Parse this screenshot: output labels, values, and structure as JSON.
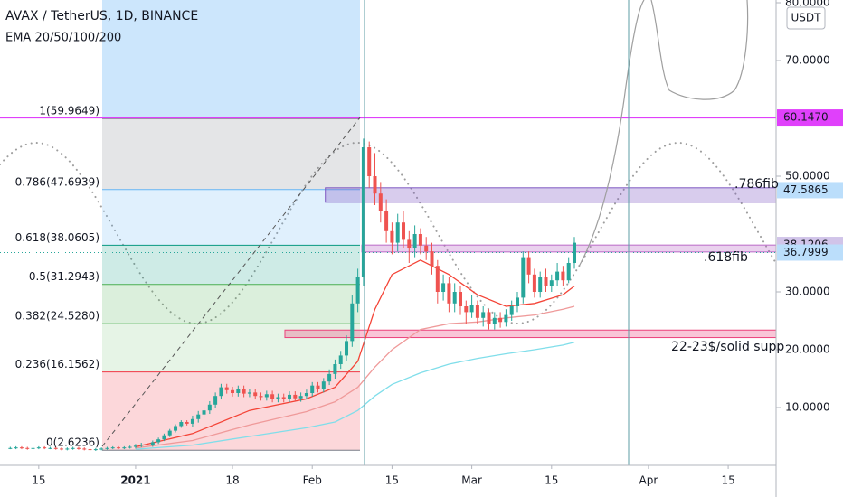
{
  "header": {
    "symbol": "AVAX / TetherUS, 1D, BINANCE",
    "indicator": "EMA 20/50/100/200"
  },
  "chart_data": {
    "type": "candlestick",
    "x": [
      -22,
      -21,
      -20,
      -19,
      -18,
      -17,
      -16,
      -15,
      -14,
      -13,
      -12,
      -11,
      -10,
      -9,
      -8,
      -7,
      -6,
      -5,
      -4,
      -3,
      -2,
      -1,
      0,
      1,
      2,
      3,
      4,
      5,
      6,
      7,
      8,
      9,
      10,
      11,
      12,
      13,
      14,
      15,
      16,
      17,
      18,
      19,
      20,
      21,
      22,
      23,
      24,
      25,
      26,
      27,
      28,
      29,
      30,
      31,
      32,
      33,
      34,
      35,
      36,
      37,
      38,
      39,
      40,
      41,
      42,
      43,
      44,
      45,
      46,
      47,
      48,
      49,
      50,
      51,
      52,
      53,
      54,
      55,
      56,
      57,
      58,
      59,
      60,
      61,
      62,
      63,
      64,
      65,
      66,
      67,
      68,
      69,
      70,
      71,
      72,
      73,
      74,
      75,
      76,
      77
    ],
    "ohlc": [
      [
        3.0,
        3.2,
        2.8,
        3.0
      ],
      [
        3.0,
        3.3,
        2.8,
        3.1
      ],
      [
        3.1,
        3.3,
        2.8,
        3.0
      ],
      [
        3.0,
        3.2,
        2.7,
        2.9
      ],
      [
        2.9,
        3.2,
        2.7,
        3.0
      ],
      [
        3.0,
        3.3,
        2.8,
        3.1
      ],
      [
        3.1,
        3.3,
        2.8,
        3.0
      ],
      [
        3.0,
        3.2,
        2.8,
        3.0
      ],
      [
        3.0,
        3.2,
        2.7,
        2.9
      ],
      [
        2.9,
        3.1,
        2.6,
        2.8
      ],
      [
        2.8,
        3.1,
        2.6,
        2.9
      ],
      [
        2.9,
        3.2,
        2.7,
        3.0
      ],
      [
        3.0,
        3.2,
        2.7,
        2.9
      ],
      [
        2.9,
        3.1,
        2.6,
        2.8
      ],
      [
        2.8,
        3.0,
        2.5,
        2.7
      ],
      [
        2.7,
        3.0,
        2.5,
        2.8
      ],
      [
        2.8,
        3.1,
        2.6,
        2.9
      ],
      [
        2.9,
        3.2,
        2.7,
        3.0
      ],
      [
        3.0,
        3.3,
        2.8,
        3.1
      ],
      [
        3.1,
        3.3,
        2.8,
        3.0
      ],
      [
        3.0,
        3.3,
        2.8,
        3.1
      ],
      [
        3.1,
        3.4,
        2.9,
        3.2
      ],
      [
        3.2,
        3.7,
        2.9,
        3.4
      ],
      [
        3.4,
        3.9,
        3.1,
        3.6
      ],
      [
        3.6,
        3.9,
        3.2,
        3.5
      ],
      [
        3.5,
        4.3,
        3.2,
        4.0
      ],
      [
        4.0,
        4.8,
        3.7,
        4.5
      ],
      [
        4.5,
        5.5,
        4.2,
        5.2
      ],
      [
        5.2,
        6.3,
        4.9,
        6.0
      ],
      [
        6.0,
        7.1,
        5.7,
        6.8
      ],
      [
        6.8,
        7.8,
        6.5,
        7.5
      ],
      [
        7.5,
        7.8,
        6.9,
        7.2
      ],
      [
        7.2,
        8.6,
        6.6,
        8.0
      ],
      [
        8.0,
        9.4,
        7.4,
        8.8
      ],
      [
        8.8,
        10.1,
        8.2,
        9.5
      ],
      [
        9.5,
        11.1,
        8.9,
        10.5
      ],
      [
        10.5,
        12.6,
        9.9,
        12.0
      ],
      [
        12.0,
        14.1,
        11.4,
        13.5
      ],
      [
        13.5,
        14.1,
        12.4,
        13.0
      ],
      [
        13.0,
        13.6,
        11.9,
        12.5
      ],
      [
        12.5,
        13.8,
        11.9,
        13.2
      ],
      [
        13.2,
        13.8,
        11.8,
        12.4
      ],
      [
        12.4,
        13.2,
        11.8,
        12.6
      ],
      [
        12.6,
        13.2,
        11.4,
        12.0
      ],
      [
        12.0,
        12.6,
        11.2,
        11.8
      ],
      [
        11.8,
        12.9,
        11.2,
        12.3
      ],
      [
        12.3,
        12.9,
        10.9,
        11.5
      ],
      [
        11.5,
        12.4,
        10.9,
        11.8
      ],
      [
        11.8,
        12.4,
        10.9,
        11.5
      ],
      [
        11.5,
        12.8,
        10.9,
        12.2
      ],
      [
        12.2,
        12.8,
        11.0,
        11.6
      ],
      [
        11.6,
        12.6,
        11.0,
        12.0
      ],
      [
        12.0,
        13.1,
        11.4,
        12.5
      ],
      [
        12.5,
        14.4,
        11.9,
        13.8
      ],
      [
        13.8,
        14.4,
        12.6,
        13.2
      ],
      [
        13.2,
        15.1,
        12.6,
        14.5
      ],
      [
        14.5,
        16.6,
        13.9,
        15.8
      ],
      [
        15.8,
        18.3,
        15.0,
        17.5
      ],
      [
        17.5,
        19.8,
        16.7,
        19.0
      ],
      [
        19.0,
        22.5,
        18.0,
        21.5
      ],
      [
        21.5,
        29.5,
        20.5,
        28.0
      ],
      [
        28.0,
        34.0,
        26.5,
        32.5
      ],
      [
        32.5,
        56.5,
        31.0,
        55.0
      ],
      [
        55.0,
        56.0,
        48.0,
        50.0
      ],
      [
        50.0,
        54.0,
        45.0,
        47.0
      ],
      [
        47.0,
        49.0,
        42.0,
        44.0
      ],
      [
        44.0,
        46.0,
        38.5,
        40.5
      ],
      [
        40.5,
        42.0,
        36.5,
        38.5
      ],
      [
        38.5,
        43.5,
        37.0,
        42.0
      ],
      [
        42.0,
        44.0,
        37.5,
        39.0
      ],
      [
        39.0,
        40.5,
        35.0,
        37.5
      ],
      [
        37.5,
        41.5,
        36.0,
        40.0
      ],
      [
        40.0,
        41.0,
        36.5,
        38.0
      ],
      [
        38.0,
        39.5,
        35.5,
        37.0
      ],
      [
        37.0,
        38.5,
        33.0,
        34.5
      ],
      [
        34.5,
        35.5,
        28.0,
        30.0
      ],
      [
        30.0,
        33.0,
        28.5,
        31.5
      ],
      [
        31.5,
        32.5,
        26.5,
        28.0
      ],
      [
        28.0,
        31.5,
        26.5,
        30.0
      ],
      [
        30.0,
        31.0,
        26.0,
        27.5
      ],
      [
        27.5,
        28.5,
        24.5,
        26.5
      ],
      [
        26.5,
        29.5,
        25.5,
        27.8
      ],
      [
        27.8,
        28.5,
        24.5,
        25.5
      ],
      [
        25.5,
        27.5,
        24.0,
        26.5
      ],
      [
        26.5,
        27.0,
        23.5,
        24.5
      ],
      [
        24.5,
        26.5,
        23.5,
        25.5
      ],
      [
        25.5,
        26.5,
        23.8,
        24.8
      ],
      [
        24.8,
        27.0,
        24.0,
        26.0
      ],
      [
        26.0,
        28.5,
        25.0,
        27.5
      ],
      [
        27.5,
        30.0,
        26.5,
        29.0
      ],
      [
        29.0,
        37.0,
        28.0,
        36.0
      ],
      [
        36.0,
        37.0,
        31.5,
        33.0
      ],
      [
        33.0,
        34.0,
        29.0,
        30.0
      ],
      [
        30.0,
        33.5,
        29.0,
        32.5
      ],
      [
        32.5,
        34.0,
        30.0,
        31.0
      ],
      [
        31.0,
        33.0,
        30.0,
        32.0
      ],
      [
        32.0,
        35.0,
        31.0,
        33.5
      ],
      [
        33.5,
        34.5,
        31.0,
        32.0
      ],
      [
        32.0,
        36.0,
        31.5,
        35.0
      ],
      [
        35.0,
        39.5,
        34.0,
        38.5
      ]
    ],
    "up_color": "#26a69a",
    "down_color": "#ef5350",
    "ema": [
      {
        "color": "#f44336",
        "x": [
          0,
          10,
          20,
          30,
          35,
          39,
          42,
          45,
          50,
          55,
          60,
          65,
          70,
          75,
          77
        ],
        "values": [
          3.2,
          5.5,
          9.5,
          11.5,
          13.5,
          18,
          27,
          33,
          35.5,
          33,
          29.5,
          27.5,
          28,
          29.5,
          31
        ]
      },
      {
        "color": "#ef9a9a",
        "x": [
          0,
          10,
          20,
          30,
          35,
          39,
          42,
          45,
          50,
          55,
          60,
          65,
          70,
          75,
          77
        ],
        "values": [
          3.0,
          4.3,
          7,
          9.3,
          11,
          13.5,
          17,
          20,
          23.5,
          24.5,
          24.8,
          25.5,
          26,
          27,
          27.5
        ]
      },
      {
        "color": "#80deea",
        "x": [
          0,
          10,
          20,
          30,
          35,
          39,
          42,
          45,
          50,
          55,
          60,
          65,
          70,
          75,
          77
        ],
        "values": [
          2.8,
          3.5,
          5,
          6.5,
          7.5,
          9.5,
          12,
          14,
          16,
          17.5,
          18.5,
          19.3,
          20,
          20.8,
          21.3
        ]
      }
    ],
    "xlim": [
      -23.8,
      112.4
    ],
    "xticks": [
      {
        "value": -17,
        "label": "15"
      },
      {
        "value": 0,
        "label": "2021"
      },
      {
        "value": 17,
        "label": "18"
      },
      {
        "value": 31,
        "label": "Feb"
      },
      {
        "value": 45,
        "label": "15"
      },
      {
        "value": 59,
        "label": "Mar"
      },
      {
        "value": 73,
        "label": "15"
      },
      {
        "value": 90,
        "label": "Apr"
      },
      {
        "value": 104,
        "label": "15"
      }
    ],
    "ylim": [
      0,
      80.47
    ],
    "yticks": [
      {
        "value": 10,
        "label": "10.0000"
      },
      {
        "value": 20,
        "label": "20.0000"
      },
      {
        "value": 30,
        "label": "30.0000"
      },
      {
        "value": 50,
        "label": "50.0000"
      },
      {
        "value": 70,
        "label": "70.0000"
      },
      {
        "value": 80,
        "label": "80.0000"
      }
    ],
    "y_unit": "USDT",
    "fib": [
      {
        "value": 59.9649,
        "label": "1(59.9649)",
        "color": "#787b86"
      },
      {
        "value": 47.6939,
        "label": "0.786(47.6939)",
        "color": "#64b5f6"
      },
      {
        "value": 38.0605,
        "label": "0.618(38.0605)",
        "color": "#089981"
      },
      {
        "value": 31.2943,
        "label": "0.5(31.2943)",
        "color": "#4caf50"
      },
      {
        "value": 24.528,
        "label": "0.382(24.5280)",
        "color": "#81c784"
      },
      {
        "value": 16.1562,
        "label": "0.236(16.1562)",
        "color": "#f23645"
      },
      {
        "value": 2.6236,
        "label": "0(2.6236)",
        "color": "#787b86"
      }
    ],
    "price_tags": [
      {
        "value": 60.147,
        "label": "60.1470",
        "color": "#e040fb",
        "text_color": "#ffffff"
      },
      {
        "value": 47.5865,
        "label": "47.5865",
        "color": "#bbdefb",
        "text_color": "#131722"
      },
      {
        "value": 38.1206,
        "label": "38.1206",
        "color": "#d1c4e9",
        "text_color": "#131722"
      },
      {
        "value": 36.7999,
        "label": "36.7999",
        "color": "#bbdefb",
        "text_color": "#131722"
      }
    ],
    "zones": [
      {
        "low": 45.5,
        "high": 48,
        "x_start": 33.3,
        "color": "#7e57c2"
      },
      {
        "low": 36.9,
        "high": 38.1,
        "x_start": 39.7,
        "color": "#ba68c8"
      },
      {
        "low": 22.1,
        "high": 23.4,
        "x_start": 26.2,
        "color": "#ec407a"
      }
    ],
    "annotations": [
      ".786fib",
      ".618fib",
      "22-23$/solid supp"
    ]
  }
}
